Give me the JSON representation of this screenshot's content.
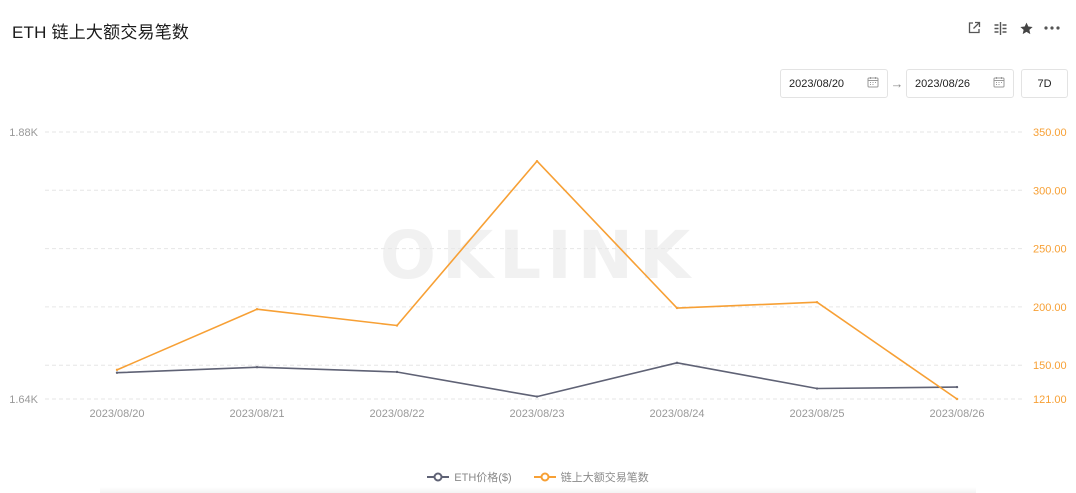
{
  "title": "ETH 链上大额交易笔数",
  "toolbar": {
    "icons": [
      "share-icon",
      "compare-icon",
      "star-icon",
      "more-icon"
    ]
  },
  "date_range": {
    "start": "2023/08/20",
    "end": "2023/08/26",
    "arrow": "→"
  },
  "period": "7D",
  "watermark": "OKLINK",
  "colors": {
    "price": "#5f6275",
    "count": "#f7a035",
    "grid": "#e6e6e6",
    "axis_left": "#999999",
    "axis_right": "#f7a035"
  },
  "chart_data": {
    "type": "line",
    "categories": [
      "2023/08/20",
      "2023/08/21",
      "2023/08/22",
      "2023/08/23",
      "2023/08/24",
      "2023/08/25",
      "2023/08/26"
    ],
    "series": [
      {
        "name": "ETH价格($)",
        "axis": "left",
        "values": [
          1.6636,
          1.6686,
          1.6643,
          1.6422,
          1.6725,
          1.6494,
          1.6507
        ]
      },
      {
        "name": "链上大额交易笔数",
        "axis": "right",
        "values": [
          146,
          198,
          184,
          325,
          199,
          204,
          121
        ]
      }
    ],
    "y_left": {
      "min": 1.64,
      "max": 1.88,
      "ticks": [
        {
          "v": 1.64,
          "label": "1.64K"
        },
        {
          "v": 1.88,
          "label": "1.88K"
        }
      ]
    },
    "y_right": {
      "min": 121,
      "max": 350,
      "ticks": [
        {
          "v": 121,
          "label": "121.00"
        },
        {
          "v": 150,
          "label": "150.00"
        },
        {
          "v": 200,
          "label": "200.00"
        },
        {
          "v": 250,
          "label": "250.00"
        },
        {
          "v": 300,
          "label": "300.00"
        },
        {
          "v": 350,
          "label": "350.00"
        }
      ]
    },
    "grid": true,
    "legend_position": "bottom-center"
  }
}
